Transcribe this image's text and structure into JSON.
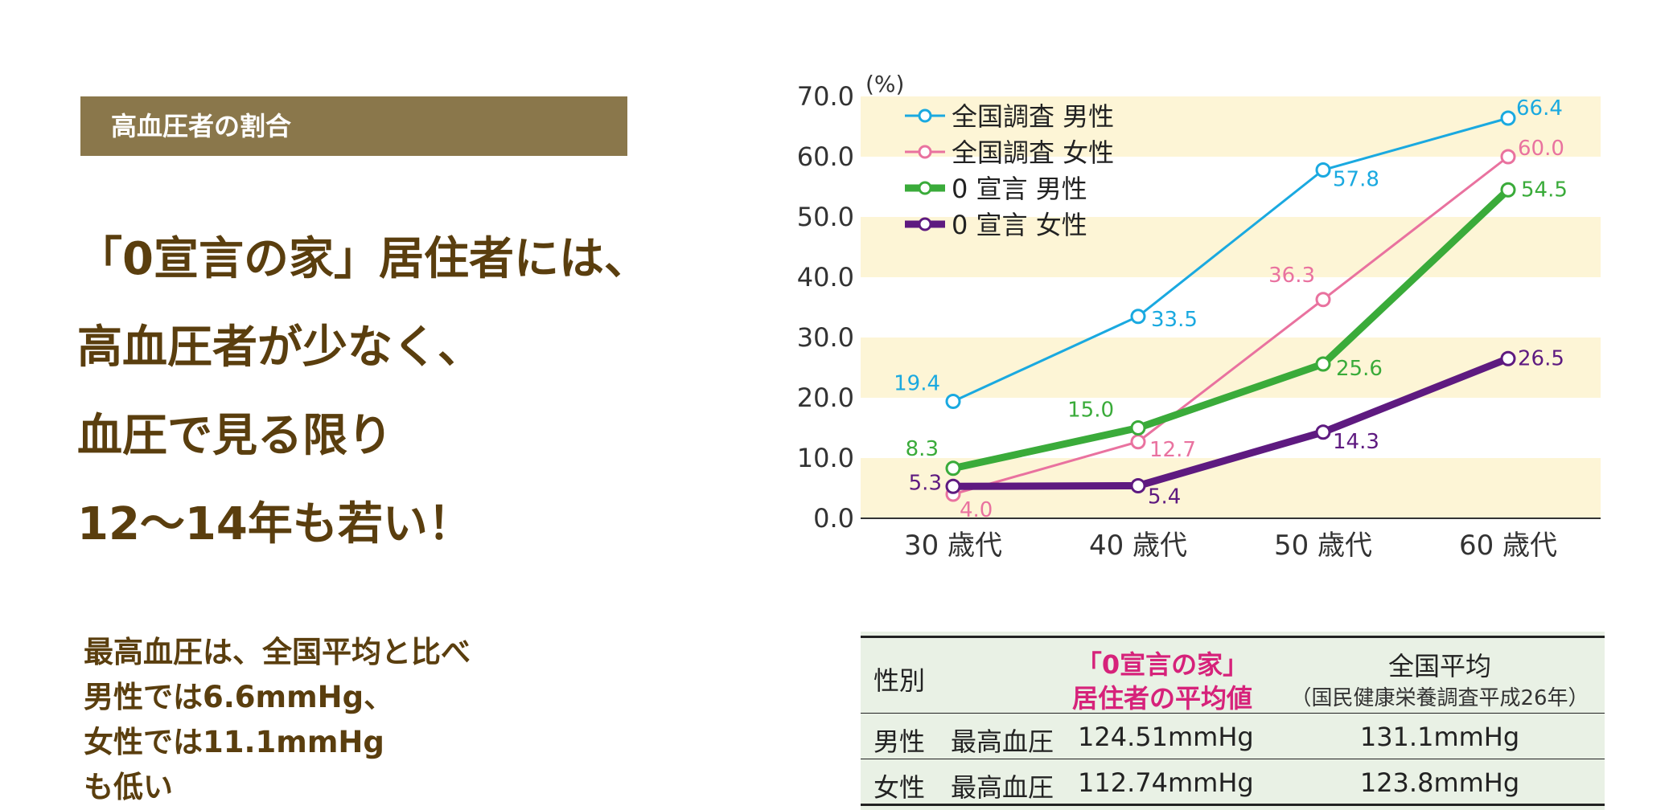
{
  "section_label": "高血圧者の割合",
  "headline": [
    "「0宣言の家」居住者には、",
    "高血圧者が少なく、",
    "血圧で見る限り",
    "12〜14年も若い！"
  ],
  "summary": [
    "最高血圧は、全国平均と比べ",
    "男性では6.6mmHg、",
    "女性では11.1mmHg",
    "も低い"
  ],
  "chart_data": {
    "type": "line",
    "unit_label": "(%)",
    "categories": [
      "30 歳代",
      "40 歳代",
      "50 歳代",
      "60 歳代"
    ],
    "ylim": [
      0,
      70
    ],
    "yticks": [
      "0.0",
      "10.0",
      "20.0",
      "30.0",
      "40.0",
      "50.0",
      "60.0",
      "70.0"
    ],
    "band_color": "#fdf5d6",
    "legend_position": "top-left",
    "series": [
      {
        "name": "全国調査 男性",
        "color": "#1aa9e0",
        "width": 3,
        "values": [
          19.4,
          33.5,
          57.8,
          66.4
        ],
        "labels": [
          "19.4",
          "33.5",
          "57.8",
          "66.4"
        ]
      },
      {
        "name": "全国調査 女性",
        "color": "#e9729f",
        "width": 3,
        "values": [
          4.0,
          12.7,
          36.3,
          60.0
        ],
        "labels": [
          "4.0",
          "12.7",
          "36.3",
          "60.0"
        ]
      },
      {
        "name": "0 宣言 男性",
        "color": "#3aab3a",
        "width": 9,
        "values": [
          8.3,
          15.0,
          25.6,
          54.5
        ],
        "labels": [
          "8.3",
          "15.0",
          "25.6",
          "54.5"
        ]
      },
      {
        "name": "0 宣言 女性",
        "color": "#5e1a80",
        "width": 9,
        "values": [
          5.3,
          5.4,
          14.3,
          26.5
        ],
        "labels": [
          "5.3",
          "5.4",
          "14.3",
          "26.5"
        ]
      }
    ]
  },
  "table": {
    "header": {
      "col1": "性別",
      "col2_line1": "「0宣言の家」",
      "col2_line2": "居住者の平均値",
      "col3_line1": "全国平均",
      "col3_line2": "（国民健康栄養調査平成26年）"
    },
    "rows": [
      {
        "label": "男性　最高血圧",
        "value": "124.51mmHg",
        "national": "131.1mmHg"
      },
      {
        "label": "女性　最高血圧",
        "value": "112.74mmHg",
        "national": "123.8mmHg"
      }
    ]
  }
}
